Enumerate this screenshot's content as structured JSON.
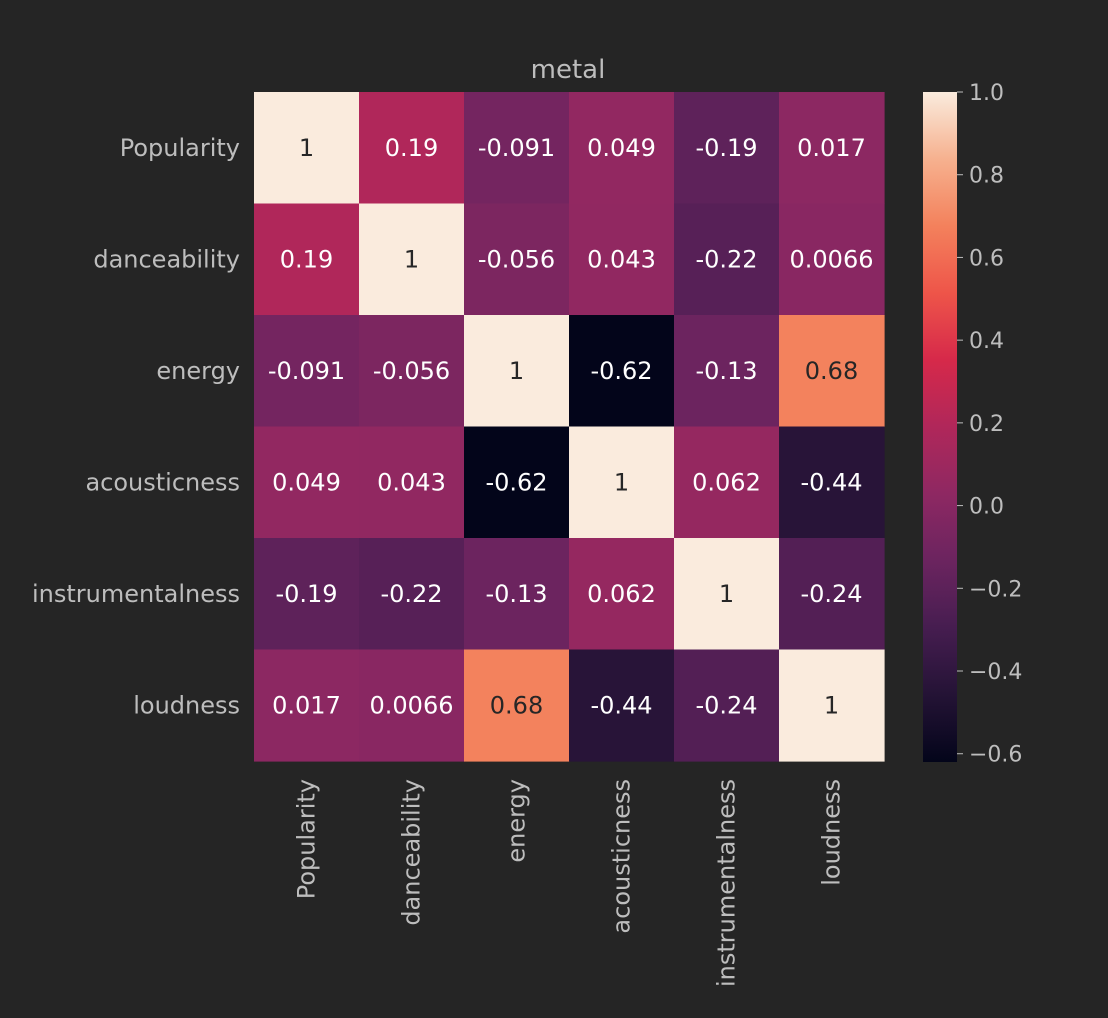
{
  "chart_data": {
    "type": "heatmap",
    "title": "metal",
    "rows": [
      "Popularity",
      "danceability",
      "energy",
      "acousticness",
      "instrumentalness",
      "loudness"
    ],
    "cols": [
      "Popularity",
      "danceability",
      "energy",
      "acousticness",
      "instrumentalness",
      "loudness"
    ],
    "values": [
      [
        1,
        0.19,
        -0.091,
        0.049,
        -0.19,
        0.017
      ],
      [
        0.19,
        1,
        -0.056,
        0.043,
        -0.22,
        0.0066
      ],
      [
        -0.091,
        -0.056,
        1,
        -0.62,
        -0.13,
        0.68
      ],
      [
        0.049,
        0.043,
        -0.62,
        1,
        0.062,
        -0.44
      ],
      [
        -0.19,
        -0.22,
        -0.13,
        0.062,
        1,
        -0.24
      ],
      [
        0.017,
        0.0066,
        0.68,
        -0.44,
        -0.24,
        1
      ]
    ],
    "annotations": [
      [
        "1",
        "0.19",
        "-0.091",
        "0.049",
        "-0.19",
        "0.017"
      ],
      [
        "0.19",
        "1",
        "-0.056",
        "0.043",
        "-0.22",
        "0.0066"
      ],
      [
        "-0.091",
        "-0.056",
        "1",
        "-0.62",
        "-0.13",
        "0.68"
      ],
      [
        "0.049",
        "0.043",
        "-0.62",
        "1",
        "0.062",
        "-0.44"
      ],
      [
        "-0.19",
        "-0.22",
        "-0.13",
        "0.062",
        "1",
        "-0.24"
      ],
      [
        "0.017",
        "0.0066",
        "0.68",
        "-0.44",
        "-0.24",
        "1"
      ]
    ],
    "vmin": -0.62,
    "vmax": 1.0,
    "colorbar": {
      "ticks": [
        1.0,
        0.8,
        0.6,
        0.4,
        0.2,
        0.0,
        -0.2,
        -0.4,
        -0.6
      ],
      "tick_labels": [
        "1.0",
        "0.8",
        "0.6",
        "0.4",
        "0.2",
        "0.0",
        "−0.2",
        "−0.4",
        "−0.6"
      ]
    },
    "colormap": "rocket",
    "background": "#252525",
    "text_color": "#bdbdbd"
  }
}
